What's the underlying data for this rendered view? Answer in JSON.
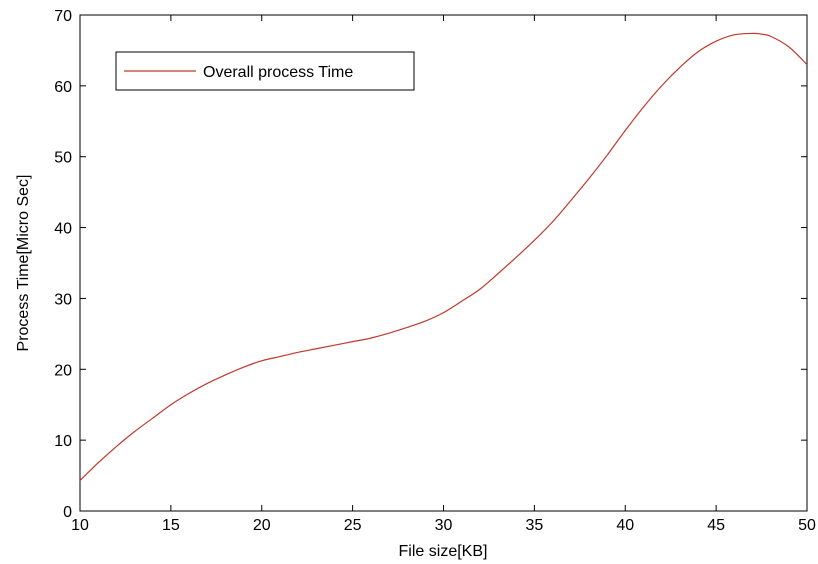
{
  "chart_data": {
    "type": "line",
    "title": "",
    "xlabel": "File size[KB]",
    "ylabel": "Process Time[Micro Sec]",
    "xlim": [
      10,
      50
    ],
    "ylim": [
      0,
      70
    ],
    "xticks": [
      "10",
      "15",
      "20",
      "25",
      "30",
      "35",
      "40",
      "45",
      "50"
    ],
    "yticks": [
      "0",
      "10",
      "20",
      "30",
      "40",
      "50",
      "60",
      "70"
    ],
    "grid": false,
    "legend_position": "top-left",
    "series": [
      {
        "name": "Overall process Time",
        "color": "#c0392b",
        "x": [
          10,
          11,
          12,
          13,
          14,
          15,
          16,
          17,
          18,
          19,
          20,
          21,
          22,
          23,
          24,
          25,
          26,
          27,
          28,
          29,
          30,
          31,
          32,
          33,
          34,
          35,
          36,
          37,
          38,
          39,
          40,
          41,
          42,
          43,
          44,
          45,
          46,
          47,
          47.5,
          48,
          49,
          50
        ],
        "y": [
          4.3,
          6.8,
          9.1,
          11.2,
          13.1,
          15.0,
          16.6,
          18.0,
          19.2,
          20.3,
          21.2,
          21.8,
          22.4,
          22.9,
          23.4,
          23.9,
          24.4,
          25.1,
          25.9,
          26.8,
          28.0,
          29.6,
          31.3,
          33.5,
          35.8,
          38.2,
          40.8,
          43.8,
          46.9,
          50.2,
          53.7,
          57.0,
          60.0,
          62.6,
          64.8,
          66.3,
          67.2,
          67.4,
          67.3,
          67.0,
          65.5,
          63.0
        ]
      }
    ]
  }
}
